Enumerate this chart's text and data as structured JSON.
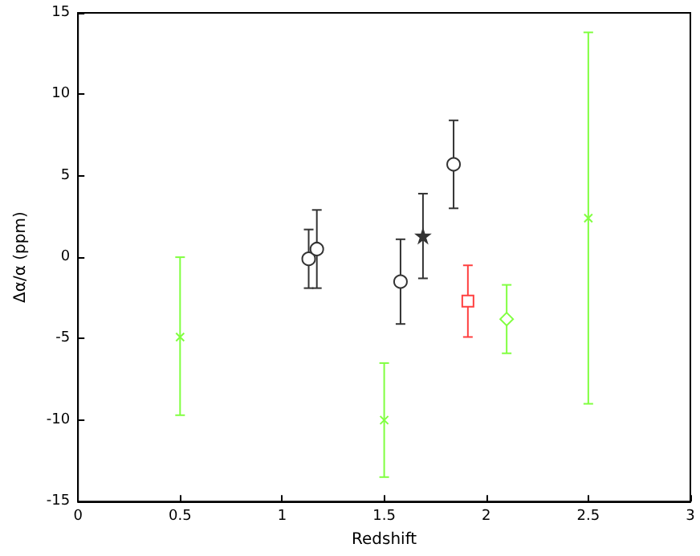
{
  "chart_data": {
    "type": "scatter",
    "xlabel": "Redshift",
    "ylabel": "Δα/α (ppm)",
    "xlim": [
      0,
      3
    ],
    "xticks": [
      0,
      0.5,
      1,
      1.5,
      2,
      2.5,
      3
    ],
    "ylim": [
      -15,
      15
    ],
    "yticks": [
      -15,
      -10,
      -5,
      0,
      5,
      10,
      15
    ],
    "grid": false,
    "series": [
      {
        "color": "#80ff40",
        "marker": "cross",
        "x": [
          0.5,
          1.5,
          2.5
        ],
        "values": [
          -4.9,
          -10,
          2.4
        ],
        "errors": [
          [
            -9.7,
            0
          ],
          [
            -13.5,
            -6.5
          ],
          [
            -9,
            13.8
          ]
        ]
      },
      {
        "color": "#333333",
        "marker": "circle",
        "x": [
          1.13,
          1.17,
          1.58,
          1.84
        ],
        "values": [
          -0.1,
          0.5,
          -1.5,
          5.7
        ],
        "errors": [
          [
            -1.9,
            1.7
          ],
          [
            -1.9,
            2.9
          ],
          [
            -4.1,
            1.1
          ],
          [
            3,
            8.4
          ]
        ]
      },
      {
        "color": "#333333",
        "marker": "star",
        "x": [
          1.69
        ],
        "values": [
          1.3
        ],
        "errors": [
          [
            -1.3,
            3.9
          ]
        ]
      },
      {
        "color": "#ff4040",
        "marker": "square",
        "x": [
          1.91
        ],
        "values": [
          -2.7
        ],
        "errors": [
          [
            -4.9,
            -0.5
          ]
        ]
      },
      {
        "color": "#80ff40",
        "marker": "diamond",
        "x": [
          2.1
        ],
        "values": [
          -3.8
        ],
        "errors": [
          [
            -5.9,
            -1.7
          ]
        ]
      }
    ]
  }
}
